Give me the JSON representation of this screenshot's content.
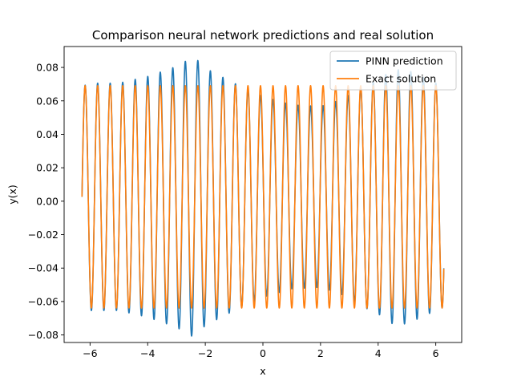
{
  "chart_data": {
    "type": "line",
    "title": "Comparison neural network predictions and real solution",
    "xlabel": "x",
    "ylabel": "y(x)",
    "xlim": [
      -6.9,
      6.9
    ],
    "ylim": [
      -0.0845,
      0.0925
    ],
    "xticks": [
      -6,
      -4,
      -2,
      0,
      2,
      4,
      6
    ],
    "xtick_labels": [
      "−6",
      "−4",
      "−2",
      "0",
      "2",
      "4",
      "6"
    ],
    "yticks": [
      -0.08,
      -0.06,
      -0.04,
      -0.02,
      0.0,
      0.02,
      0.04,
      0.06,
      0.08
    ],
    "ytick_labels": [
      "−0.08",
      "−0.06",
      "−0.04",
      "−0.02",
      "0.00",
      "0.02",
      "0.04",
      "0.06",
      "0.08"
    ],
    "grid": false,
    "legend_position": "top-right",
    "series": [
      {
        "name": "PINN prediction",
        "color": "#1f77b4",
        "function": "sine",
        "x_range": [
          -6.28,
          6.28
        ],
        "frequency": 2.3,
        "offset": 0.0026,
        "amplitude_envelope": {
          "x": [
            -6.28,
            -6.0,
            -5.0,
            -4.0,
            -3.0,
            -2.4,
            -2.0,
            -1.0,
            0.0,
            1.0,
            2.0,
            2.7,
            3.5,
            4.0,
            4.5,
            5.0,
            5.5,
            6.0,
            6.28
          ],
          "amp": [
            0.066,
            0.068,
            0.068,
            0.072,
            0.078,
            0.084,
            0.077,
            0.068,
            0.06,
            0.055,
            0.054,
            0.058,
            0.066,
            0.07,
            0.076,
            0.076,
            0.072,
            0.068,
            0.066
          ]
        }
      },
      {
        "name": "Exact solution",
        "color": "#ff7f0e",
        "function": "sine",
        "x_range": [
          -6.28,
          6.28
        ],
        "frequency": 2.3,
        "offset": 0.0026,
        "amplitude": 0.0665
      }
    ]
  }
}
